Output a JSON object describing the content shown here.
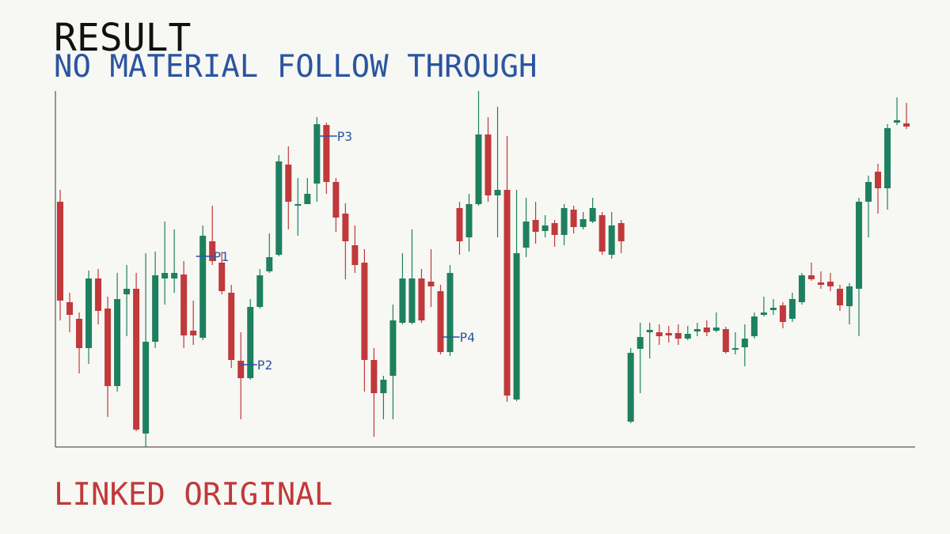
{
  "chart_data": {
    "type": "candlestick",
    "title": "RESULT",
    "subtitle": "NO MATERIAL FOLLOW THROUGH",
    "footer": "LINKED ORIGINAL",
    "title_color": "#111111",
    "subtitle_color": "#2a55a0",
    "footer_color": "#c0393b",
    "up_color": "#1e8060",
    "down_color": "#c0393b",
    "xlim": [
      -0.5,
      89.83
    ],
    "ylim": [
      0,
      450
    ],
    "ohlc": [
      [
        310,
        325,
        160,
        185
      ],
      [
        183,
        195,
        145,
        167
      ],
      [
        162,
        170,
        93,
        125
      ],
      [
        125,
        223,
        105,
        213
      ],
      [
        213,
        225,
        155,
        172
      ],
      [
        175,
        190,
        38,
        77
      ],
      [
        77,
        220,
        70,
        187
      ],
      [
        193,
        230,
        140,
        200
      ],
      [
        200,
        220,
        20,
        22
      ],
      [
        17,
        245,
        0,
        133
      ],
      [
        133,
        247,
        125,
        217
      ],
      [
        213,
        285,
        180,
        220
      ],
      [
        213,
        275,
        195,
        220
      ],
      [
        218,
        235,
        125,
        141
      ],
      [
        147,
        185,
        129,
        141
      ],
      [
        138,
        280,
        135,
        267
      ],
      [
        260,
        305,
        230,
        235
      ],
      [
        233,
        247,
        193,
        197
      ],
      [
        195,
        205,
        100,
        110
      ],
      [
        109,
        145,
        35,
        87
      ],
      [
        87,
        187,
        85,
        177
      ],
      [
        177,
        225,
        175,
        217
      ],
      [
        222,
        270,
        220,
        240
      ],
      [
        243,
        369,
        241,
        361
      ],
      [
        357,
        380,
        275,
        310
      ],
      [
        305,
        340,
        267,
        307
      ],
      [
        307,
        340,
        307,
        320
      ],
      [
        333,
        417,
        310,
        408
      ],
      [
        407,
        410,
        320,
        335
      ],
      [
        335,
        340,
        272,
        290
      ],
      [
        295,
        308,
        212,
        260
      ],
      [
        255,
        280,
        220,
        230
      ],
      [
        233,
        250,
        70,
        110
      ],
      [
        110,
        125,
        13,
        68
      ],
      [
        68,
        90,
        35,
        85
      ],
      [
        90,
        180,
        35,
        160
      ],
      [
        157,
        245,
        155,
        213
      ],
      [
        157,
        275,
        155,
        213
      ],
      [
        213,
        225,
        157,
        160
      ],
      [
        209,
        250,
        177,
        203
      ],
      [
        197,
        205,
        117,
        120
      ],
      [
        120,
        230,
        115,
        220
      ],
      [
        302,
        310,
        243,
        260
      ],
      [
        265,
        320,
        247,
        307
      ],
      [
        307,
        450,
        305,
        395
      ],
      [
        395,
        417,
        310,
        318
      ],
      [
        318,
        430,
        265,
        325
      ],
      [
        325,
        393,
        57,
        65
      ],
      [
        60,
        325,
        58,
        245
      ],
      [
        252,
        315,
        240,
        285
      ],
      [
        287,
        310,
        257,
        272
      ],
      [
        273,
        293,
        265,
        280
      ],
      [
        283,
        287,
        253,
        268
      ],
      [
        268,
        307,
        255,
        302
      ],
      [
        300,
        305,
        270,
        278
      ],
      [
        278,
        297,
        275,
        288
      ],
      [
        285,
        315,
        283,
        302
      ],
      [
        293,
        297,
        243,
        247
      ],
      [
        243,
        297,
        238,
        280
      ],
      [
        283,
        287,
        245,
        260
      ],
      [
        32,
        125,
        30,
        119
      ],
      [
        124,
        157,
        68,
        139
      ],
      [
        145,
        157,
        112,
        148
      ],
      [
        145,
        155,
        129,
        140
      ],
      [
        144,
        153,
        132,
        141
      ],
      [
        144,
        155,
        129,
        137
      ],
      [
        137,
        153,
        135,
        143
      ],
      [
        146,
        157,
        140,
        149
      ],
      [
        151,
        160,
        140,
        145
      ],
      [
        147,
        170,
        145,
        151
      ],
      [
        149,
        152,
        118,
        120
      ],
      [
        123,
        145,
        117,
        125
      ],
      [
        126,
        155,
        102,
        137
      ],
      [
        140,
        170,
        137,
        165
      ],
      [
        167,
        190,
        165,
        170
      ],
      [
        173,
        187,
        167,
        176
      ],
      [
        179,
        183,
        150,
        158
      ],
      [
        162,
        195,
        158,
        187
      ],
      [
        183,
        220,
        180,
        217
      ],
      [
        217,
        233,
        210,
        212
      ],
      [
        208,
        222,
        200,
        205
      ],
      [
        209,
        220,
        197,
        203
      ],
      [
        200,
        205,
        172,
        179
      ],
      [
        178,
        207,
        155,
        203
      ],
      [
        200,
        315,
        140,
        310
      ],
      [
        310,
        343,
        265,
        335
      ],
      [
        348,
        358,
        295,
        327
      ],
      [
        327,
        408,
        300,
        403
      ],
      [
        410,
        442,
        407,
        413
      ],
      [
        409,
        435,
        402,
        405
      ]
    ],
    "annotations": [
      {
        "label": "P1",
        "x": 15.2,
        "y": 241
      },
      {
        "label": "P2",
        "x": 19.8,
        "y": 104
      },
      {
        "label": "P3",
        "x": 28.2,
        "y": 393
      },
      {
        "label": "P4",
        "x": 41.1,
        "y": 139
      }
    ],
    "annotation_color": "#2a55a0"
  }
}
